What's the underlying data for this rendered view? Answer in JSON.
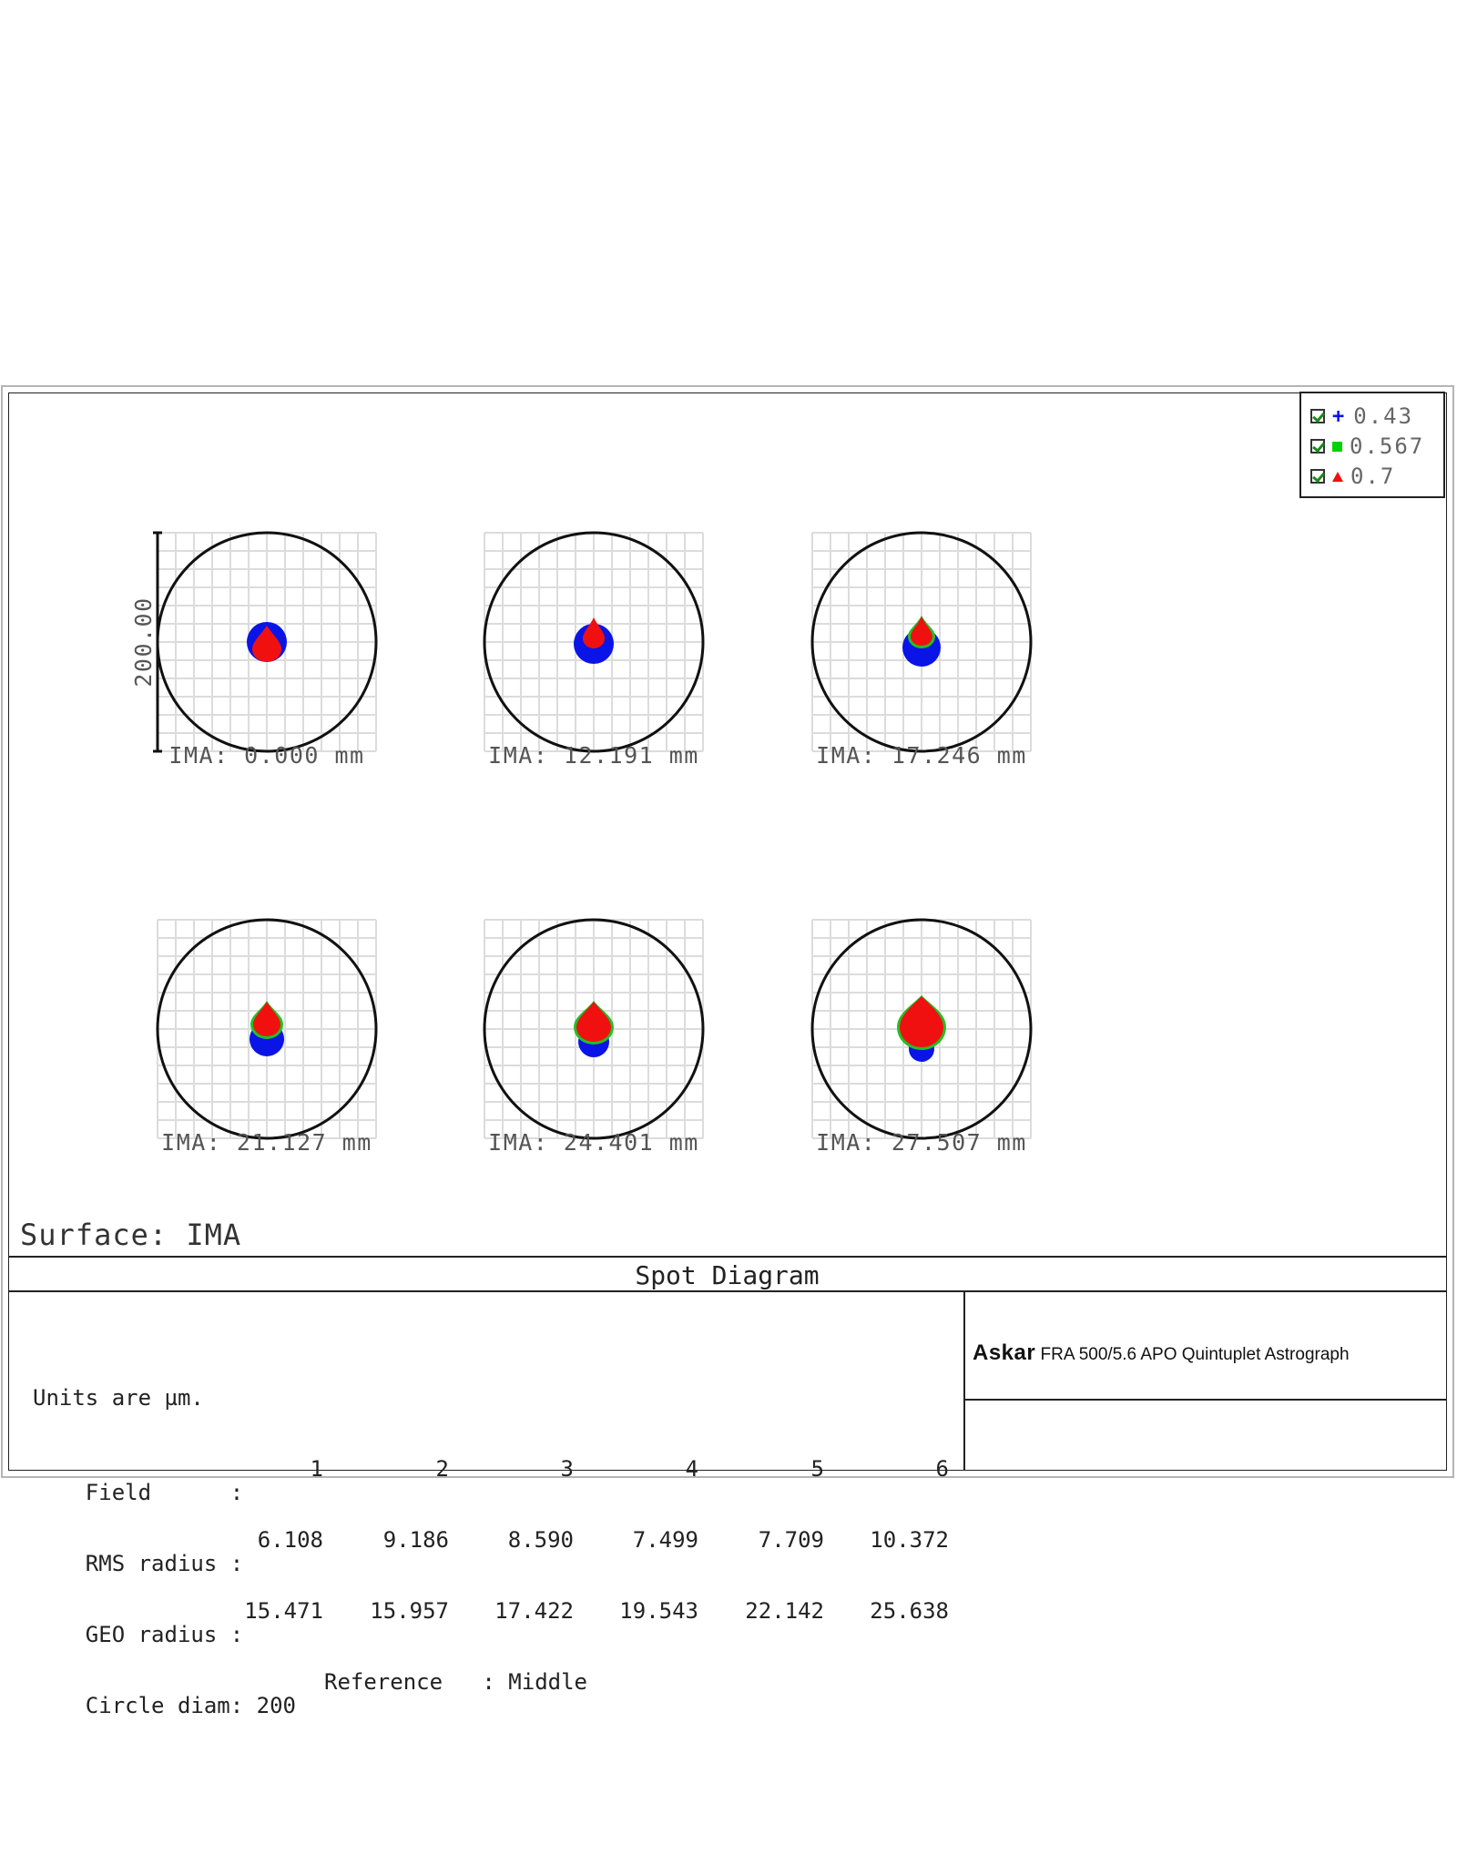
{
  "chart_data": {
    "type": "scatter",
    "title": "Spot Diagram",
    "surface_label": "Surface: IMA",
    "scale_bar_label": "200.00",
    "legend": [
      {
        "label": "0.43",
        "color": "#0a14e6",
        "marker": "plus"
      },
      {
        "label": "0.567",
        "color": "#00d400",
        "marker": "square"
      },
      {
        "label": "0.7",
        "color": "#f01010",
        "marker": "triangle"
      }
    ],
    "fields": [
      {
        "label": "IMA: 0.000 mm",
        "rms_radius": 6.108,
        "geo_radius": 15.471,
        "blue_r": 22,
        "blue_dy": 0,
        "red_tip": -18,
        "red_w": 16,
        "red_h": 14,
        "green": false
      },
      {
        "label": "IMA: 12.191 mm",
        "rms_radius": 9.186,
        "geo_radius": 15.957,
        "blue_r": 22,
        "blue_dy": 2,
        "red_tip": -27,
        "red_w": 12,
        "red_h": 11,
        "green": false
      },
      {
        "label": "IMA: 17.246 mm",
        "rms_radius": 8.59,
        "geo_radius": 17.422,
        "blue_r": 21,
        "blue_dy": 6,
        "red_tip": -28,
        "red_w": 12,
        "red_h": 10,
        "green": true
      },
      {
        "label": "IMA: 21.127 mm",
        "rms_radius": 7.499,
        "geo_radius": 19.543,
        "blue_r": 19,
        "blue_dy": 11,
        "red_tip": -30,
        "red_w": 15,
        "red_h": 13,
        "green": true
      },
      {
        "label": "IMA: 24.401 mm",
        "rms_radius": 7.709,
        "geo_radius": 22.142,
        "blue_r": 17,
        "blue_dy": 14,
        "red_tip": -30,
        "red_w": 19,
        "red_h": 16,
        "green": true
      },
      {
        "label": "IMA: 27.507 mm",
        "rms_radius": 10.372,
        "geo_radius": 25.638,
        "blue_r": 14,
        "blue_dy": 22,
        "red_tip": -36,
        "red_w": 24,
        "red_h": 22,
        "green": true
      }
    ]
  },
  "info": {
    "units": "Units are µm.",
    "field_label": "Field      :",
    "field_numbers": [
      "1",
      "2",
      "3",
      "4",
      "5",
      "6"
    ],
    "rms_label": "RMS radius :",
    "rms_values": [
      "6.108",
      "9.186",
      "8.590",
      "7.499",
      "7.709",
      "10.372"
    ],
    "geo_label": "GEO radius :",
    "geo_values": [
      "15.471",
      "15.957",
      "17.422",
      "19.543",
      "22.142",
      "25.638"
    ],
    "circle_label": "Circle diam: 200",
    "reference_label": "Reference   : Middle"
  },
  "product": {
    "brand": "Askar",
    "model": "FRA 500/5.6 APO Quintuplet Astrograph"
  }
}
